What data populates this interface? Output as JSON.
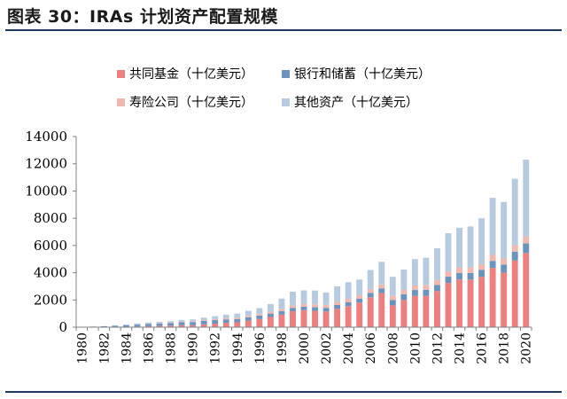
{
  "title": "图表 30：IRAs 计划资产配置规模",
  "colors": {
    "mutual_funds": "#ee7f7f",
    "bank_savings": "#6b93bf",
    "insurance": "#f2b7ae",
    "other": "#b7cbe0",
    "rule": "#1f3864"
  },
  "chart_data": {
    "type": "bar",
    "stacked": true,
    "title": "",
    "xlabel": "",
    "ylabel": "",
    "ylim": [
      0,
      14000
    ],
    "yticks": [
      "0",
      "2000",
      "4000",
      "6000",
      "8000",
      "10000",
      "12000",
      "14000"
    ],
    "xticks": [
      "1980",
      "1982",
      "1984",
      "1986",
      "1988",
      "1990",
      "1992",
      "1994",
      "1996",
      "1998",
      "2000",
      "2002",
      "2004",
      "2006",
      "2008",
      "2010",
      "2012",
      "2014",
      "2016",
      "2018",
      "2020"
    ],
    "grid": false,
    "legend_placement": "top",
    "categories": [
      "1980",
      "1981",
      "1982",
      "1983",
      "1984",
      "1985",
      "1986",
      "1987",
      "1988",
      "1989",
      "1990",
      "1991",
      "1992",
      "1993",
      "1994",
      "1995",
      "1996",
      "1997",
      "1998",
      "1999",
      "2000",
      "2001",
      "2002",
      "2003",
      "2004",
      "2005",
      "2006",
      "2007",
      "2008",
      "2009",
      "2010",
      "2011",
      "2012",
      "2013",
      "2014",
      "2015",
      "2016",
      "2017",
      "2018",
      "2019",
      "2020"
    ],
    "series": [
      {
        "name": "共同基金（十亿美元）",
        "color_key": "mutual_funds",
        "values": [
          3,
          5,
          8,
          15,
          25,
          40,
          70,
          95,
          110,
          140,
          140,
          210,
          260,
          320,
          360,
          480,
          600,
          750,
          920,
          1170,
          1250,
          1200,
          1150,
          1350,
          1550,
          1800,
          2200,
          2500,
          1600,
          2000,
          2300,
          2300,
          2650,
          3250,
          3500,
          3500,
          3700,
          4350,
          4000,
          4900,
          5450
        ]
      },
      {
        "name": "银行和储蓄（十亿美元）",
        "color_key": "bank_savings",
        "values": [
          25,
          40,
          60,
          90,
          120,
          150,
          170,
          180,
          200,
          220,
          240,
          250,
          260,
          250,
          240,
          250,
          250,
          250,
          250,
          250,
          250,
          260,
          270,
          280,
          290,
          300,
          320,
          350,
          400,
          420,
          430,
          450,
          450,
          460,
          470,
          480,
          500,
          520,
          600,
          650,
          700
        ]
      },
      {
        "name": "寿险公司（十亿美元）",
        "color_key": "insurance",
        "values": [
          2,
          3,
          5,
          8,
          10,
          15,
          20,
          25,
          30,
          40,
          50,
          60,
          70,
          80,
          90,
          100,
          110,
          130,
          150,
          180,
          200,
          210,
          220,
          230,
          240,
          250,
          270,
          290,
          300,
          310,
          330,
          350,
          370,
          380,
          400,
          410,
          420,
          440,
          450,
          480,
          500
        ]
      },
      {
        "name": "其他资产（十亿美元）",
        "color_key": "other",
        "values": [
          0,
          2,
          10,
          27,
          45,
          65,
          80,
          100,
          110,
          130,
          140,
          180,
          220,
          270,
          310,
          370,
          440,
          570,
          780,
          1000,
          1000,
          1020,
          910,
          1140,
          1220,
          1150,
          1410,
          1660,
          1400,
          1500,
          1940,
          2000,
          2330,
          2810,
          2930,
          3010,
          3380,
          4190,
          4150,
          4870,
          5650
        ]
      }
    ]
  }
}
